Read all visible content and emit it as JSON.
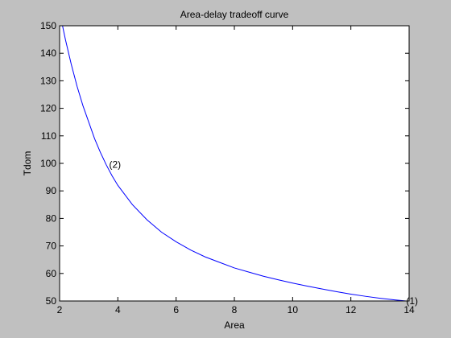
{
  "window": {
    "background_color": "#c0c0c0"
  },
  "chart_data": {
    "type": "line",
    "title": "Area-delay tradeoff curve",
    "xlabel": "Area",
    "ylabel": "Tdom",
    "xlim": [
      2,
      14
    ],
    "ylim": [
      50,
      150
    ],
    "xticks": [
      2,
      4,
      6,
      8,
      10,
      12,
      14
    ],
    "yticks": [
      50,
      60,
      70,
      80,
      90,
      100,
      110,
      120,
      130,
      140,
      150
    ],
    "grid": false,
    "legend": "none",
    "line_color": "#0000ff",
    "series": [
      {
        "x": [
          2.1,
          2.2,
          2.4,
          2.6,
          2.8,
          3.0,
          3.2,
          3.4,
          3.6,
          3.8,
          4.0,
          4.5,
          5.0,
          5.5,
          6.0,
          6.5,
          7.0,
          7.5,
          8.0,
          8.5,
          9.0,
          9.5,
          10.0,
          10.5,
          11.0,
          11.5,
          12.0,
          12.5,
          13.0,
          13.5,
          13.9
        ],
        "y": [
          150,
          145,
          136,
          128,
          121,
          115,
          109,
          104,
          99.5,
          95.5,
          92,
          85,
          79.5,
          75,
          71.5,
          68.5,
          66,
          64,
          62,
          60.5,
          59,
          57.7,
          56.5,
          55.4,
          54.4,
          53.4,
          52.5,
          51.7,
          51,
          50.4,
          50
        ]
      }
    ],
    "annotations": [
      {
        "text": "(2)",
        "x": 3.7,
        "y": 99.5
      },
      {
        "text": "(1)",
        "x": 13.9,
        "y": 50
      }
    ]
  }
}
